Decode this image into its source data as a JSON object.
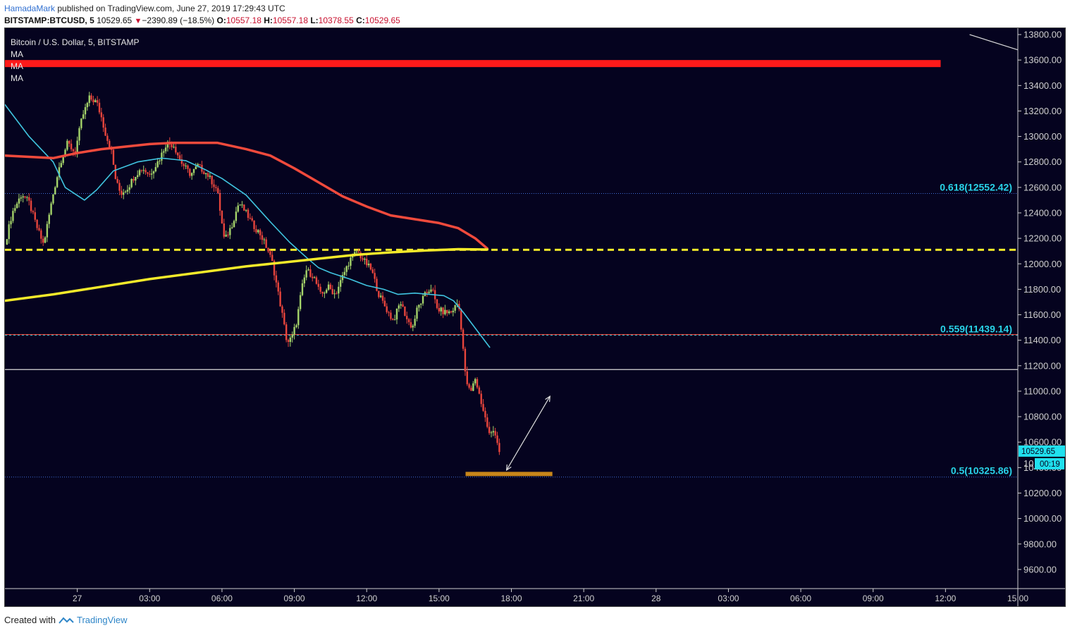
{
  "header": {
    "author": "HamadaMark",
    "published_text": "published on TradingView.com, June 27, 2019 17:29:43 UTC",
    "symbol": "BITSTAMP:BTCUSD, 5",
    "last": "10529.65",
    "change_arrow": "▼",
    "change": "−2390.89 (−18.5%)",
    "open_label": "O:",
    "open": "10557.18",
    "high_label": "H:",
    "high": "10557.18",
    "low_label": "L:",
    "low": "10378.55",
    "close_label": "C:",
    "close": "10529.65"
  },
  "legend": {
    "title": "Bitcoin / U.S. Dollar, 5, BITSTAMP",
    "indicators": [
      "MA",
      "MA",
      "MA"
    ]
  },
  "footer": {
    "prefix": "Created with",
    "brand": "TradingView"
  },
  "colors": {
    "background": "#05031f",
    "up_candle": "#a5d46a",
    "down_candle": "#e8453c",
    "ma_fast": "#40c4e0",
    "ma_mid": "#f04a3c",
    "ma_slow": "#f4ea2a",
    "resistance_zone": "#ff1a1a",
    "support_zone": "#c8861a",
    "fib_text": "#29d3e8",
    "axis_text": "#d0d0d0",
    "price_tag": "#20e0ee"
  },
  "chart_data": {
    "type": "candlestick",
    "y_axis": {
      "range": [
        9450,
        13850
      ],
      "ticks": [
        9600,
        9800,
        10000,
        10200,
        10400,
        10600,
        10800,
        11000,
        11200,
        11400,
        11600,
        11800,
        12000,
        12200,
        12400,
        12600,
        12800,
        13000,
        13200,
        13400,
        13600,
        13800
      ],
      "tick_labels": [
        "9600.00",
        "9800.00",
        "10000.00",
        "10200.00",
        "10400.00",
        "10600.00",
        "10800.00",
        "11000.00",
        "11200.00",
        "11400.00",
        "11600.00",
        "11800.00",
        "12000.00",
        "12200.00",
        "12400.00",
        "12600.00",
        "12800.00",
        "13000.00",
        "13200.00",
        "13400.00",
        "13600.00",
        "13800.00"
      ]
    },
    "x_axis": {
      "unit": "hours since 2019-06-26 21:00 UTC",
      "range": [
        0,
        42
      ],
      "ticks": [
        3,
        6,
        9,
        12,
        15,
        18,
        21,
        24,
        27,
        30,
        33,
        36,
        39,
        42
      ],
      "tick_labels": [
        "27",
        "03:00",
        "06:00",
        "09:00",
        "12:00",
        "15:00",
        "18:00",
        "21:00",
        "28",
        "03:00",
        "06:00",
        "09:00",
        "12:00",
        "15:00"
      ]
    },
    "price_path": [
      [
        0.0,
        12150
      ],
      [
        0.3,
        12400
      ],
      [
        0.7,
        12550
      ],
      [
        1.0,
        12480
      ],
      [
        1.3,
        12300
      ],
      [
        1.6,
        12150
      ],
      [
        2.0,
        12550
      ],
      [
        2.3,
        12800
      ],
      [
        2.6,
        12950
      ],
      [
        2.9,
        12870
      ],
      [
        3.2,
        13150
      ],
      [
        3.5,
        13300
      ],
      [
        3.8,
        13270
      ],
      [
        4.0,
        13150
      ],
      [
        4.2,
        13000
      ],
      [
        4.4,
        12900
      ],
      [
        4.6,
        12650
      ],
      [
        4.8,
        12550
      ],
      [
        5.1,
        12600
      ],
      [
        5.4,
        12700
      ],
      [
        5.7,
        12750
      ],
      [
        6.0,
        12700
      ],
      [
        6.4,
        12820
      ],
      [
        6.7,
        12950
      ],
      [
        7.0,
        12930
      ],
      [
        7.3,
        12800
      ],
      [
        7.7,
        12700
      ],
      [
        8.0,
        12770
      ],
      [
        8.4,
        12700
      ],
      [
        8.8,
        12580
      ],
      [
        9.1,
        12180
      ],
      [
        9.4,
        12300
      ],
      [
        9.7,
        12480
      ],
      [
        10.0,
        12400
      ],
      [
        10.3,
        12300
      ],
      [
        10.6,
        12230
      ],
      [
        10.9,
        12110
      ],
      [
        11.1,
        12000
      ],
      [
        11.3,
        11800
      ],
      [
        11.5,
        11600
      ],
      [
        11.7,
        11380
      ],
      [
        11.9,
        11420
      ],
      [
        12.1,
        11550
      ],
      [
        12.3,
        11800
      ],
      [
        12.5,
        11950
      ],
      [
        12.8,
        11900
      ],
      [
        13.1,
        11750
      ],
      [
        13.4,
        11820
      ],
      [
        13.7,
        11760
      ],
      [
        14.0,
        11900
      ],
      [
        14.3,
        12030
      ],
      [
        14.6,
        12100
      ],
      [
        14.9,
        12020
      ],
      [
        15.2,
        11950
      ],
      [
        15.5,
        11760
      ],
      [
        15.8,
        11650
      ],
      [
        16.1,
        11550
      ],
      [
        16.4,
        11700
      ],
      [
        16.7,
        11550
      ],
      [
        16.9,
        11500
      ],
      [
        17.1,
        11650
      ],
      [
        17.4,
        11750
      ],
      [
        17.7,
        11820
      ],
      [
        17.9,
        11650
      ],
      [
        18.2,
        11620
      ],
      [
        18.5,
        11620
      ],
      [
        18.8,
        11700
      ],
      [
        18.95,
        11450
      ],
      [
        19.1,
        11100
      ],
      [
        19.3,
        10980
      ],
      [
        19.5,
        11100
      ],
      [
        19.7,
        10950
      ],
      [
        19.9,
        10800
      ],
      [
        20.1,
        10650
      ],
      [
        20.3,
        10700
      ],
      [
        20.5,
        10530
      ]
    ],
    "series": [
      {
        "name": "MA",
        "color_key": "ma_fast",
        "points": [
          [
            0,
            13250
          ],
          [
            1.0,
            13000
          ],
          [
            2.0,
            12800
          ],
          [
            2.5,
            12600
          ],
          [
            3.3,
            12500
          ],
          [
            3.8,
            12580
          ],
          [
            4.5,
            12730
          ],
          [
            5.5,
            12800
          ],
          [
            6.5,
            12830
          ],
          [
            7.5,
            12810
          ],
          [
            8.3,
            12740
          ],
          [
            9.0,
            12670
          ],
          [
            10.0,
            12540
          ],
          [
            11.0,
            12330
          ],
          [
            11.8,
            12170
          ],
          [
            12.5,
            12050
          ],
          [
            13.0,
            11970
          ],
          [
            13.5,
            11930
          ],
          [
            14.3,
            11880
          ],
          [
            15.0,
            11830
          ],
          [
            15.7,
            11800
          ],
          [
            16.3,
            11760
          ],
          [
            17.0,
            11770
          ],
          [
            17.6,
            11760
          ],
          [
            18.2,
            11750
          ],
          [
            18.6,
            11710
          ],
          [
            19.0,
            11620
          ],
          [
            19.6,
            11470
          ],
          [
            20.1,
            11345
          ]
        ]
      },
      {
        "name": "MA",
        "color_key": "ma_mid",
        "points": [
          [
            0,
            12850
          ],
          [
            2.0,
            12830
          ],
          [
            3.0,
            12870
          ],
          [
            4.0,
            12900
          ],
          [
            5.0,
            12920
          ],
          [
            6.0,
            12940
          ],
          [
            7.0,
            12950
          ],
          [
            8.0,
            12950
          ],
          [
            8.8,
            12950
          ],
          [
            10.0,
            12900
          ],
          [
            11.0,
            12850
          ],
          [
            12.0,
            12750
          ],
          [
            13.0,
            12640
          ],
          [
            14.0,
            12530
          ],
          [
            15.0,
            12450
          ],
          [
            16.0,
            12380
          ],
          [
            17.0,
            12350
          ],
          [
            18.0,
            12320
          ],
          [
            18.8,
            12280
          ],
          [
            19.5,
            12200
          ],
          [
            20.0,
            12120
          ]
        ]
      },
      {
        "name": "MA",
        "color_key": "ma_slow",
        "points": [
          [
            0,
            11710
          ],
          [
            2.0,
            11760
          ],
          [
            4.0,
            11820
          ],
          [
            6.0,
            11880
          ],
          [
            8.0,
            11930
          ],
          [
            10.0,
            11980
          ],
          [
            11.5,
            12010
          ],
          [
            13.0,
            12040
          ],
          [
            14.5,
            12070
          ],
          [
            16.0,
            12090
          ],
          [
            17.5,
            12105
          ],
          [
            18.8,
            12115
          ],
          [
            20.0,
            12112
          ]
        ]
      }
    ],
    "fib_levels": [
      {
        "ratio": 0.618,
        "price": 12552.42,
        "label": "0.618(12552.42)"
      },
      {
        "ratio": 0.559,
        "price": 11439.14,
        "label": "0.559(11439.14)"
      },
      {
        "ratio": 0.5,
        "price": 10325.86,
        "label": "0.5(10325.86)"
      }
    ],
    "resistance_zone": {
      "price_low": 13545,
      "price_high": 13600,
      "x_start": 0,
      "x_end": 38.8
    },
    "support_zone": {
      "price": 10350,
      "x_start": 19.1,
      "x_end": 22.7
    },
    "horizontal_lines": [
      {
        "price": 12110,
        "style": "dashed",
        "color_key": "ma_slow"
      },
      {
        "price": 11445,
        "style": "solid",
        "color_key": "down_candle"
      },
      {
        "price": 11170,
        "style": "solid",
        "color": "#d9d9d9"
      }
    ],
    "arrow": {
      "from": [
        20.8,
        10380
      ],
      "to": [
        22.6,
        10960
      ]
    },
    "corner_line": {
      "from": [
        40.0,
        13800
      ],
      "to": [
        42.0,
        13680
      ]
    },
    "price_tag": {
      "value": "10529.65",
      "countdown": "00:19",
      "partial_tick": "10"
    }
  }
}
